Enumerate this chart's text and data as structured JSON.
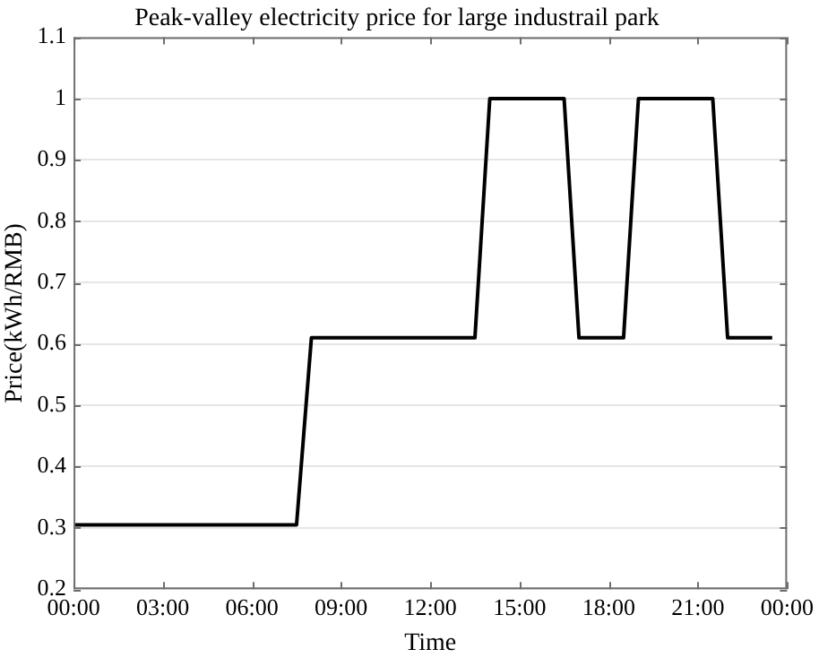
{
  "chart_data": {
    "type": "line",
    "title": "Peak-valley electricity price for large industrail park",
    "xlabel": "Time",
    "ylabel": "Price(kWh/RMB)",
    "x": [
      0,
      7.5,
      8,
      13.5,
      14,
      16.5,
      17,
      18.5,
      19,
      21.5,
      22,
      23.5
    ],
    "series": [
      {
        "color": "#000000",
        "values": [
          0.305,
          0.305,
          0.61,
          0.61,
          1,
          1,
          0.61,
          0.61,
          1,
          1,
          0.61,
          0.61
        ]
      }
    ],
    "xlim": [
      0,
      24
    ],
    "xticks": [
      {
        "value": 0,
        "label": "00:00"
      },
      {
        "value": 3,
        "label": "03:00"
      },
      {
        "value": 6,
        "label": "06:00"
      },
      {
        "value": 9,
        "label": "09:00"
      },
      {
        "value": 12,
        "label": "12:00"
      },
      {
        "value": 15,
        "label": "15:00"
      },
      {
        "value": 18,
        "label": "18:00"
      },
      {
        "value": 21,
        "label": "21:00"
      },
      {
        "value": 24,
        "label": "00:00"
      }
    ],
    "ylim": [
      0.2,
      1.1
    ],
    "yticks": [
      0.2,
      0.3,
      0.4,
      0.5,
      0.6,
      0.7,
      0.8,
      0.9,
      1,
      1.1
    ],
    "grid": "y",
    "legend": false,
    "marker": "none",
    "line_style": "solid"
  }
}
